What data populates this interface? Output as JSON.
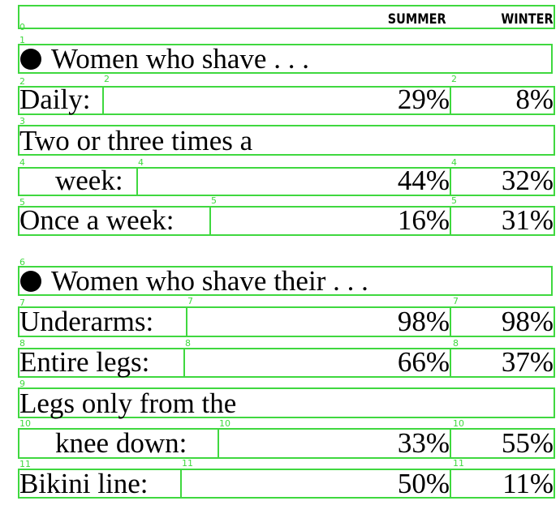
{
  "header": {
    "summer_label": "SUMMER",
    "winter_label": "WINTER"
  },
  "section1": {
    "heading": "Women who shave . . .",
    "rows": [
      {
        "label": "Daily:",
        "summer": "29%",
        "winter": "8%"
      },
      {
        "label": "Two or three times a",
        "summer": "",
        "winter": ""
      },
      {
        "label": "week:",
        "summer": "44%",
        "winter": "32%"
      },
      {
        "label": "Once a week:",
        "summer": "16%",
        "winter": "31%"
      }
    ]
  },
  "section2": {
    "heading": "Women who shave their . . .",
    "rows": [
      {
        "label": "Underarms:",
        "summer": "98%",
        "winter": "98%"
      },
      {
        "label": "Entire legs:",
        "summer": "66%",
        "winter": "37%"
      },
      {
        "label": "Legs only from the",
        "summer": "",
        "winter": ""
      },
      {
        "label": "knee down:",
        "summer": "33%",
        "winter": "55%"
      },
      {
        "label": "Bikini line:",
        "summer": "50%",
        "winter": "11%"
      }
    ]
  },
  "box_indices": [
    "0",
    "1",
    "2",
    "3",
    "4",
    "5",
    "6",
    "7",
    "8",
    "9",
    "10",
    "11"
  ],
  "colors": {
    "box_outline": "#3fd83f",
    "text": "#000000",
    "background": "#ffffff"
  }
}
